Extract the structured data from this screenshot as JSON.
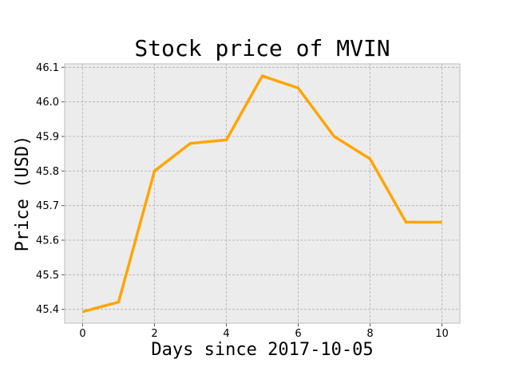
{
  "chart_data": {
    "type": "line",
    "title": "Stock price of MVIN",
    "xlabel": "Days since 2017-10-05",
    "ylabel": "Price (USD)",
    "x": [
      0,
      1,
      2,
      3,
      4,
      5,
      6,
      7,
      8,
      9,
      10
    ],
    "series": [
      {
        "values": [
          45.393,
          45.421,
          45.8,
          45.88,
          45.89,
          46.075,
          46.04,
          45.9,
          45.835,
          45.652,
          45.652
        ],
        "color": "#ffa500"
      }
    ],
    "xlim": [
      -0.5,
      10.5
    ],
    "ylim": [
      45.36,
      46.11
    ],
    "xticks": [
      0,
      2,
      4,
      6,
      8,
      10
    ],
    "xtick_labels": [
      "0",
      "2",
      "4",
      "6",
      "8",
      "10"
    ],
    "yticks": [
      45.4,
      45.5,
      45.6,
      45.7,
      45.8,
      45.9,
      46.0,
      46.1
    ],
    "ytick_labels": [
      "45.4",
      "45.5",
      "45.6",
      "45.7",
      "45.8",
      "45.9",
      "46.0",
      "46.1"
    ],
    "grid": true,
    "grid_style": "dashed",
    "plot_background": "#ececec",
    "frame_color": "#bcbcbc",
    "grid_color": "#b0b0b0"
  }
}
